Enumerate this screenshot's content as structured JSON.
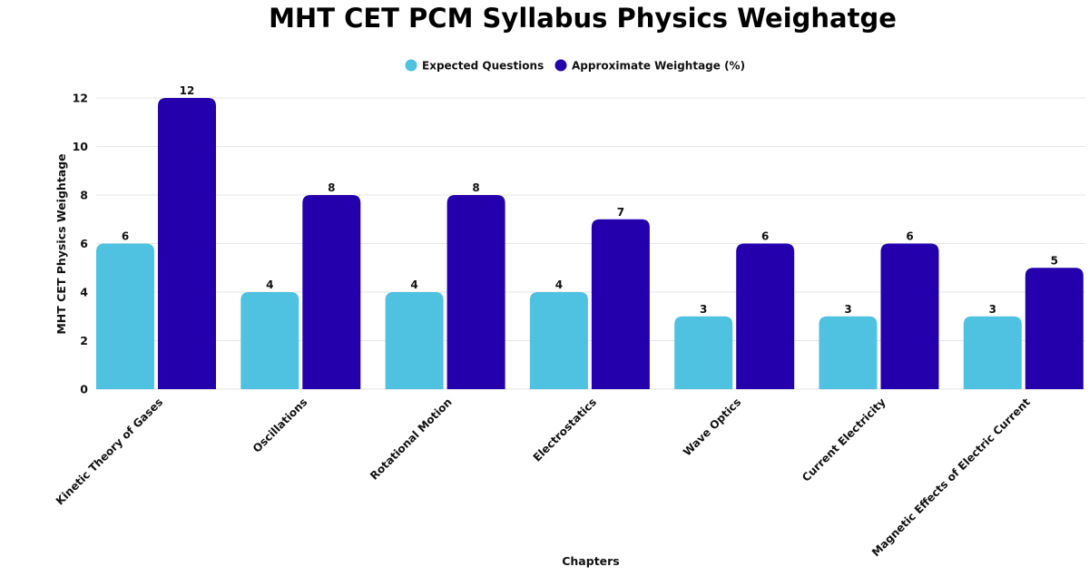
{
  "chart_data": {
    "type": "bar",
    "title": "MHT CET PCM Syllabus Physics Weighatge",
    "xlabel": "Chapters",
    "ylabel": "MHT CET Physics Weightage",
    "ylim": [
      0,
      12
    ],
    "yticks": [
      "0",
      "2",
      "4",
      "6",
      "8",
      "10",
      "12"
    ],
    "grid": true,
    "legend_position": "top-center",
    "categories": [
      "Kinetic Theory of Gases",
      "Oscillations",
      "Rotational Motion",
      "Electrostatics",
      "Wave Optics",
      "Current Electricity",
      "Magnetic Effects of Electric Current"
    ],
    "series": [
      {
        "name": "Expected Questions",
        "color": "#4fc1e1",
        "values": [
          6,
          4,
          4,
          4,
          3,
          3,
          3
        ]
      },
      {
        "name": "Approximate Weightage (%)",
        "color": "#2400ad",
        "values": [
          12,
          8,
          8,
          7,
          6,
          6,
          5
        ]
      }
    ]
  }
}
